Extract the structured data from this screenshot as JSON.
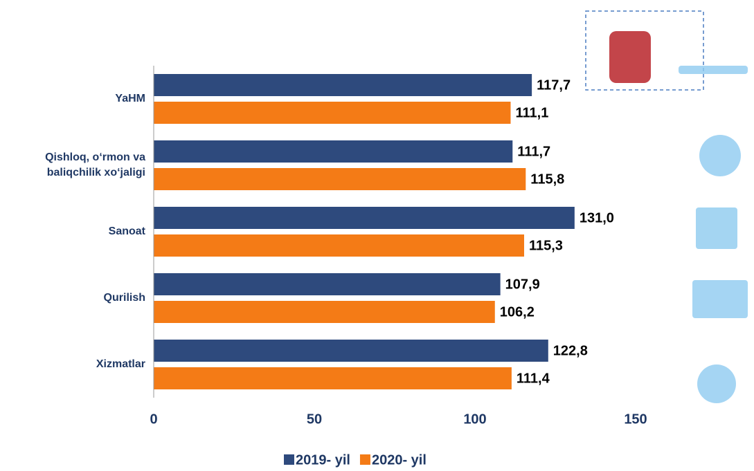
{
  "chart_data": {
    "type": "bar",
    "orientation": "horizontal",
    "categories": [
      "YaHM",
      "Qishloq, o‘rmon va baliqchilik xo‘jaligi",
      "Sanoat",
      "Qurilish",
      "Xizmatlar"
    ],
    "series": [
      {
        "name": "2019- yil",
        "color": "#2e4a7d",
        "values": [
          117.7,
          111.7,
          131.0,
          107.9,
          122.8
        ],
        "value_labels": [
          "117,7",
          "111,7",
          "131,0",
          "107,9",
          "122,8"
        ]
      },
      {
        "name": "2020- yil",
        "color": "#f47b16",
        "values": [
          111.1,
          115.8,
          115.3,
          106.2,
          111.4
        ],
        "value_labels": [
          "111,1",
          "115,8",
          "115,3",
          "106,2",
          "111,4"
        ]
      }
    ],
    "xlim": [
      0,
      150
    ],
    "xticks": [
      0,
      50,
      100,
      150
    ],
    "legend": "bottom"
  }
}
